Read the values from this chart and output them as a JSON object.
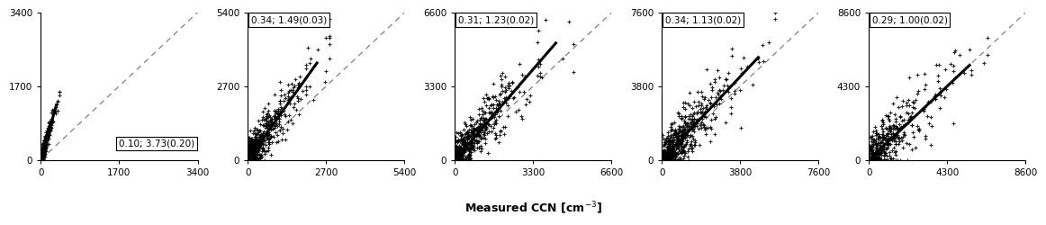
{
  "panels": [
    {
      "label": "0.10; 3.73(0.20)",
      "xmax": 3400,
      "ymax": 3400,
      "xticks": [
        0,
        1700,
        3400
      ],
      "yticks": [
        0,
        1700,
        3400
      ],
      "label_pos": "bottom_right",
      "slope": 3.73,
      "data_xmax": 400,
      "data_spread": 80,
      "n_points": 400
    },
    {
      "label": "0.34; 1.49(0.03)",
      "xmax": 5400,
      "ymax": 5400,
      "xticks": [
        0,
        2700,
        5400
      ],
      "yticks": [
        0,
        2700,
        5400
      ],
      "label_pos": "top_left",
      "slope": 1.49,
      "data_xmax": 2800,
      "data_spread": 350,
      "n_points": 500
    },
    {
      "label": "0.31; 1.23(0.02)",
      "xmax": 6600,
      "ymax": 6600,
      "xticks": [
        0,
        3300,
        6600
      ],
      "yticks": [
        0,
        3300,
        6600
      ],
      "label_pos": "top_left",
      "slope": 1.23,
      "data_xmax": 5000,
      "data_spread": 450,
      "n_points": 500
    },
    {
      "label": "0.34; 1.13(0.02)",
      "xmax": 7600,
      "ymax": 7600,
      "xticks": [
        0,
        3800,
        7600
      ],
      "yticks": [
        0,
        3800,
        7600
      ],
      "label_pos": "top_left",
      "slope": 1.13,
      "data_xmax": 5500,
      "data_spread": 500,
      "n_points": 500
    },
    {
      "label": "0.29; 1.00(0.02)",
      "xmax": 8600,
      "ymax": 8600,
      "xticks": [
        0,
        4300,
        8600
      ],
      "yticks": [
        0,
        4300,
        8600
      ],
      "label_pos": "top_left",
      "slope": 1.0,
      "data_xmax": 6500,
      "data_spread": 600,
      "n_points": 400
    }
  ],
  "xlabel": "Measured CCN [cm$^{-3}$]",
  "marker": "+",
  "marker_size": 3.5,
  "marker_color": "black",
  "line_color": "black",
  "dashed_color": "gray"
}
